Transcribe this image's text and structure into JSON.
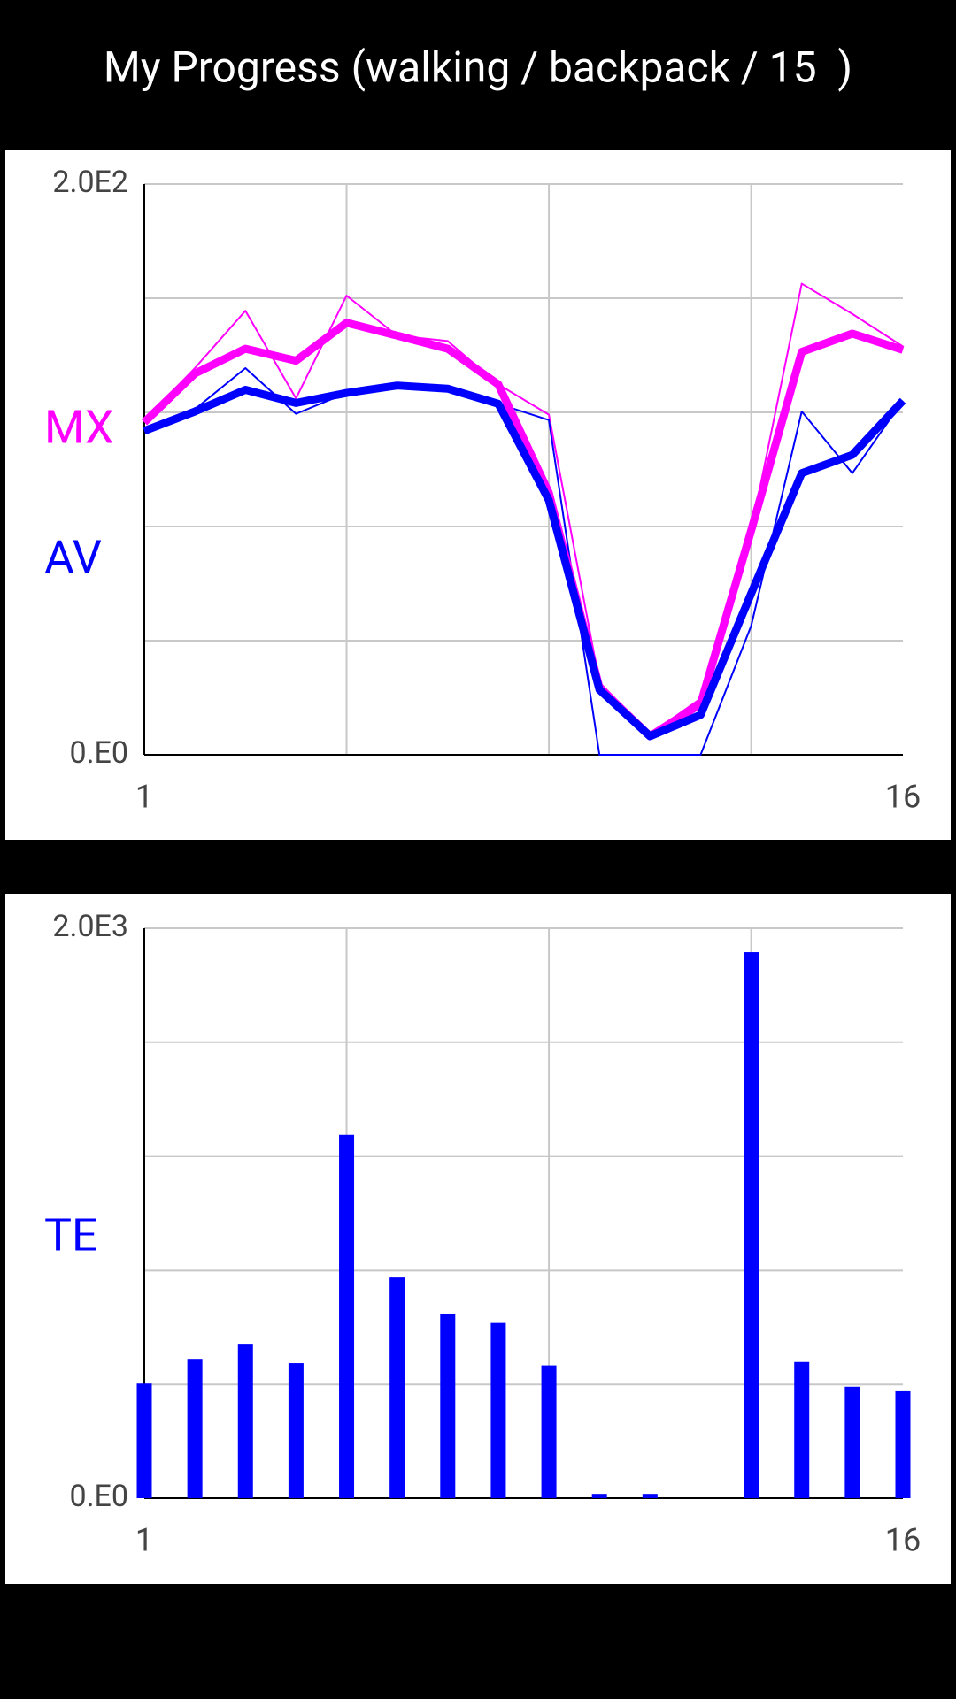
{
  "title": "My Progress (walking / backpack / 15  )",
  "chart_data": [
    {
      "type": "line",
      "x": [
        1,
        2,
        3,
        4,
        5,
        6,
        7,
        8,
        9,
        10,
        11,
        12,
        13,
        14,
        15,
        16
      ],
      "series": [
        {
          "color": "#ff00ff",
          "width": 2,
          "values": [
            117.3,
            135.5,
            155.6,
            124.9,
            160.9,
            146.9,
            145,
            129.8,
            119.2,
            25.4,
            7.2,
            19.7,
            78.6,
            165.1,
            154.5,
            143.1
          ]
        },
        {
          "color": "#0000ff",
          "width": 2,
          "values": [
            113.5,
            121.1,
            135.5,
            119.5,
            126.8,
            129.4,
            128.3,
            123,
            117.3,
            0,
            0,
            0,
            45.2,
            120.3,
            98.7,
            124.1
          ]
        },
        {
          "name": "MX",
          "color": "#ff00ff",
          "width": 9,
          "values": [
            116.5,
            133.6,
            142.3,
            138.1,
            151.4,
            146.9,
            142.3,
            129.8,
            91.8,
            23.5,
            6.5,
            17.8,
            78.6,
            141.2,
            147.6,
            141.9
          ]
        },
        {
          "name": "AV",
          "color": "#0000ff",
          "width": 9,
          "values": [
            113.5,
            120.3,
            127.9,
            123.3,
            126.8,
            129.4,
            128.3,
            123,
            89.2,
            22.8,
            6.5,
            14,
            56.5,
            98.7,
            105.1,
            124.1
          ]
        }
      ],
      "xlim": [
        1,
        16
      ],
      "xticks": [
        1,
        16
      ],
      "xgrid": [
        5,
        9,
        13
      ],
      "ylim": [
        0,
        200
      ],
      "yticks": [
        {
          "value": 0,
          "label": "0.E0"
        },
        {
          "value": 200,
          "label": "2.0E2"
        }
      ],
      "ygrid": [
        40,
        80,
        120,
        160
      ],
      "grid": true
    },
    {
      "type": "bar",
      "x": [
        1,
        2,
        3,
        4,
        5,
        6,
        7,
        8,
        9,
        10,
        11,
        12,
        13,
        14,
        15,
        16
      ],
      "series": [
        {
          "name": "TE",
          "color": "#0000ff",
          "values": [
            403,
            487,
            540,
            475,
            1274,
            776,
            646,
            616,
            464,
            15,
            15,
            0,
            1916,
            479,
            392,
            376
          ]
        }
      ],
      "xlim": [
        1,
        16
      ],
      "xticks": [
        1,
        16
      ],
      "xgrid": [
        5,
        9,
        13
      ],
      "ylim": [
        0,
        2000
      ],
      "yticks": [
        {
          "value": 0,
          "label": "0.E0"
        },
        {
          "value": 2000,
          "label": "2.0E3"
        }
      ],
      "ygrid": [
        400,
        800,
        1200,
        1600
      ],
      "grid": true
    }
  ]
}
